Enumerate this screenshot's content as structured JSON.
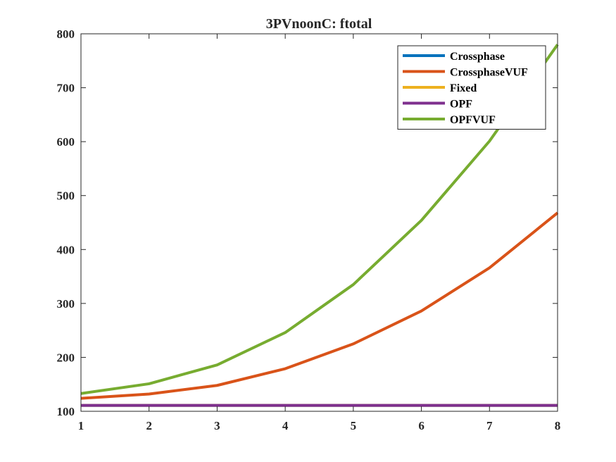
{
  "chart_data": {
    "type": "line",
    "title": "3PVnoonC: ftotal",
    "xlabel": "",
    "ylabel": "",
    "xlim": [
      1,
      8
    ],
    "ylim": [
      100,
      800
    ],
    "x": [
      1,
      2,
      3,
      4,
      5,
      6,
      7,
      8
    ],
    "xticks": [
      "1",
      "2",
      "3",
      "4",
      "5",
      "6",
      "7",
      "8"
    ],
    "yticks": [
      "100",
      "200",
      "300",
      "400",
      "500",
      "600",
      "700",
      "800"
    ],
    "grid": false,
    "legend_location": "top-right",
    "series": [
      {
        "name": "Crossphase",
        "color": "#0072BD",
        "values": [
          111,
          111,
          111,
          111,
          111,
          111,
          111,
          111
        ]
      },
      {
        "name": "CrossphaseVUF",
        "color": "#D95319",
        "values": [
          124,
          132,
          148,
          179,
          225,
          286,
          366,
          468
        ]
      },
      {
        "name": "Fixed",
        "color": "#EDB120",
        "values": [
          111,
          111,
          111,
          111,
          111,
          111,
          111,
          111
        ]
      },
      {
        "name": "OPF",
        "color": "#7E2F8E",
        "values": [
          111,
          111,
          111,
          111,
          111,
          111,
          111,
          111
        ]
      },
      {
        "name": "OPFVUF",
        "color": "#77AC30",
        "values": [
          133,
          151,
          186,
          246,
          335,
          454,
          601,
          780
        ]
      }
    ]
  }
}
